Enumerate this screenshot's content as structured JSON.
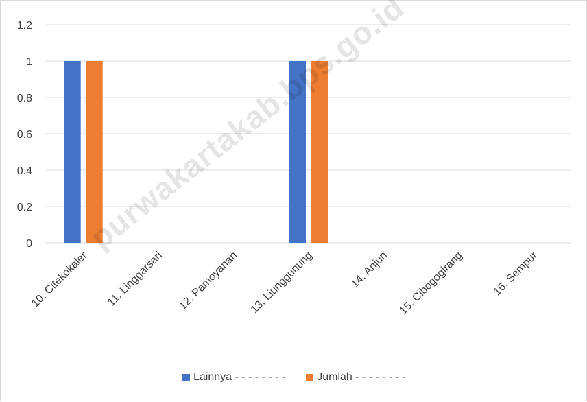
{
  "watermark": "purwakartakab.bps.go.id",
  "chart_data": {
    "type": "bar",
    "categories": [
      "10. Citekokaler",
      "11. Linggarsari",
      "12. Pamoyanan",
      "13. Liunggunung",
      "14. Anjun",
      "15. Cibogogirang",
      "16. Sempur"
    ],
    "series": [
      {
        "name": "Lainnya - - - - - - - -",
        "values": [
          1,
          0,
          0,
          1,
          0,
          0,
          0
        ],
        "color": "#4472c4"
      },
      {
        "name": "Jumlah - - - - - - - -",
        "values": [
          1,
          0,
          0,
          1,
          0,
          0,
          0
        ],
        "color": "#ed7d31"
      }
    ],
    "yticks": [
      "0",
      "0.2",
      "0.4",
      "0.6",
      "0.8",
      "1",
      "1.2"
    ],
    "ylim": [
      0,
      1.2
    ],
    "grid": true,
    "legend": "bottom",
    "title": "",
    "xlabel": "",
    "ylabel": "",
    "gridColor": "#d9d9d9",
    "textColor": "#404040"
  }
}
